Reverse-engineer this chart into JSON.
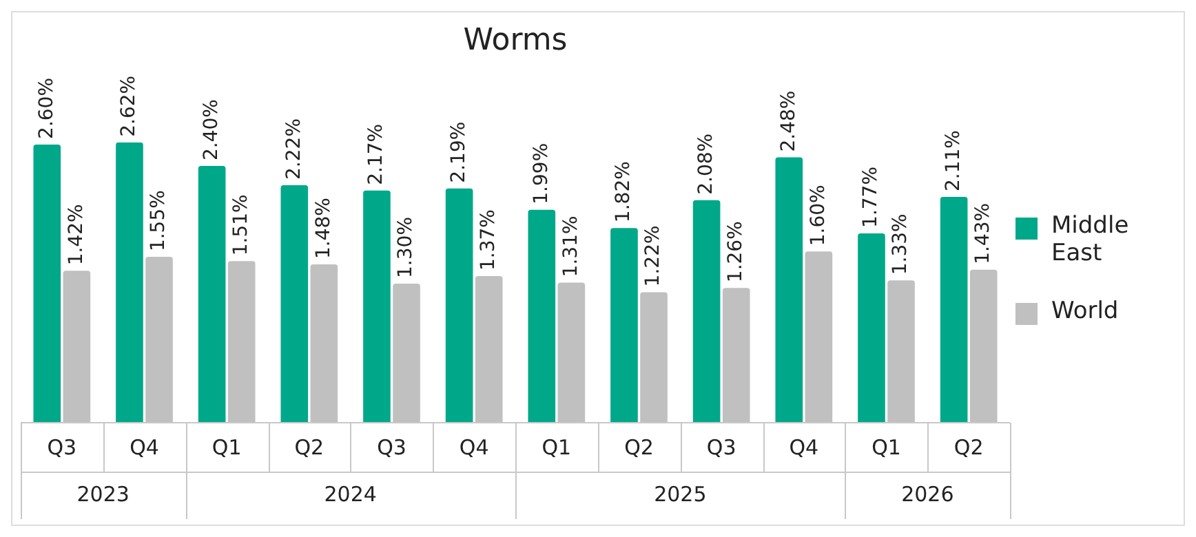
{
  "chart_data": {
    "type": "bar",
    "title": "Worms",
    "categories": [
      "Q3",
      "Q4",
      "Q1",
      "Q2",
      "Q3",
      "Q4",
      "Q1",
      "Q2",
      "Q3",
      "Q4",
      "Q1",
      "Q2"
    ],
    "series": [
      {
        "name": "Middle East",
        "color": "#00a88a",
        "values": [
          2.6,
          2.62,
          2.4,
          2.22,
          2.17,
          2.19,
          1.99,
          1.82,
          2.08,
          2.48,
          1.77,
          2.11
        ],
        "value_labels": [
          "2.60%",
          "2.62%",
          "2.40%",
          "2.22%",
          "2.17%",
          "2.19%",
          "1.99%",
          "1.82%",
          "2.08%",
          "2.48%",
          "1.77%",
          "2.11%"
        ]
      },
      {
        "name": "World",
        "color": "#c0c0c0",
        "values": [
          1.42,
          1.55,
          1.51,
          1.48,
          1.3,
          1.37,
          1.31,
          1.22,
          1.26,
          1.6,
          1.33,
          1.43
        ],
        "value_labels": [
          "1.42%",
          "1.55%",
          "1.51%",
          "1.48%",
          "1.30%",
          "1.37%",
          "1.31%",
          "1.22%",
          "1.26%",
          "1.60%",
          "1.33%",
          "1.43%"
        ]
      }
    ],
    "annotations": [
      "2023",
      "2024",
      "2025",
      "2026"
    ],
    "grid": false,
    "legend": "right"
  }
}
